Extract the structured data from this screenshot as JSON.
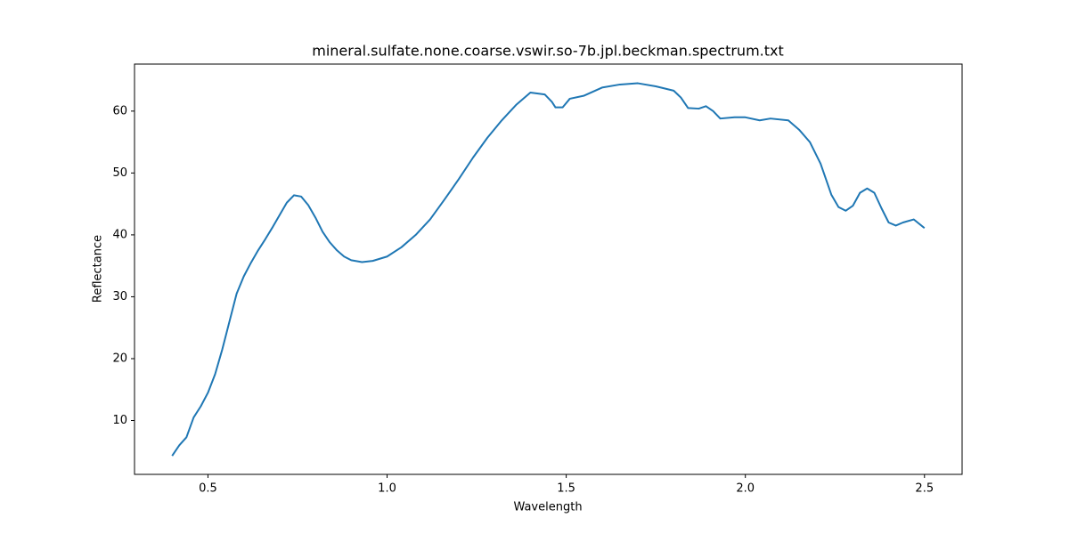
{
  "chart_data": {
    "type": "line",
    "title": "mineral.sulfate.none.coarse.vswir.so-7b.jpl.beckman.spectrum.txt",
    "x_label": "Wavelength",
    "y_label": "Reflectance",
    "x": [
      0.4,
      0.42,
      0.44,
      0.46,
      0.48,
      0.5,
      0.52,
      0.54,
      0.56,
      0.58,
      0.6,
      0.62,
      0.64,
      0.66,
      0.68,
      0.7,
      0.72,
      0.74,
      0.76,
      0.78,
      0.8,
      0.82,
      0.84,
      0.86,
      0.88,
      0.9,
      0.93,
      0.96,
      1.0,
      1.04,
      1.08,
      1.12,
      1.16,
      1.2,
      1.24,
      1.28,
      1.32,
      1.36,
      1.4,
      1.44,
      1.46,
      1.47,
      1.49,
      1.51,
      1.55,
      1.6,
      1.65,
      1.7,
      1.75,
      1.8,
      1.82,
      1.84,
      1.87,
      1.89,
      1.91,
      1.93,
      1.97,
      2.0,
      2.04,
      2.07,
      2.12,
      2.15,
      2.18,
      2.21,
      2.24,
      2.26,
      2.28,
      2.3,
      2.32,
      2.34,
      2.36,
      2.38,
      2.4,
      2.42,
      2.44,
      2.47,
      2.5
    ],
    "series": [
      {
        "name": "spectrum",
        "color": "#1f77b4",
        "values": [
          4.3,
          6.0,
          7.3,
          10.5,
          12.3,
          14.5,
          17.5,
          21.5,
          26,
          30.5,
          33.3,
          35.5,
          37.5,
          39.3,
          41.2,
          43.2,
          45.2,
          46.4,
          46.2,
          44.8,
          42.8,
          40.5,
          38.8,
          37.5,
          36.5,
          35.9,
          35.6,
          35.8,
          36.5,
          38,
          40,
          42.5,
          45.7,
          49,
          52.5,
          55.7,
          58.5,
          61,
          63,
          62.7,
          61.5,
          60.6,
          60.6,
          62,
          62.5,
          63.8,
          64.3,
          64.5,
          64.0,
          63.3,
          62.2,
          60.5,
          60.4,
          60.8,
          60.0,
          58.8,
          59.0,
          59.0,
          58.5,
          58.8,
          58.5,
          57,
          55,
          51.5,
          46.5,
          44.5,
          43.9,
          44.7,
          46.8,
          47.5,
          46.8,
          44.3,
          42,
          41.5,
          42,
          42.5,
          41.1
        ]
      }
    ],
    "xlim": [
      0.295,
      2.605
    ],
    "ylim": [
      1.3,
      67.6
    ],
    "xticks": [
      0.5,
      {
        "value": 1.0,
        "label": "1.0"
      },
      1.5,
      {
        "value": 2.0,
        "label": "2.0"
      },
      2.5
    ],
    "yticks": [
      10,
      20,
      30,
      40,
      50,
      60
    ]
  }
}
